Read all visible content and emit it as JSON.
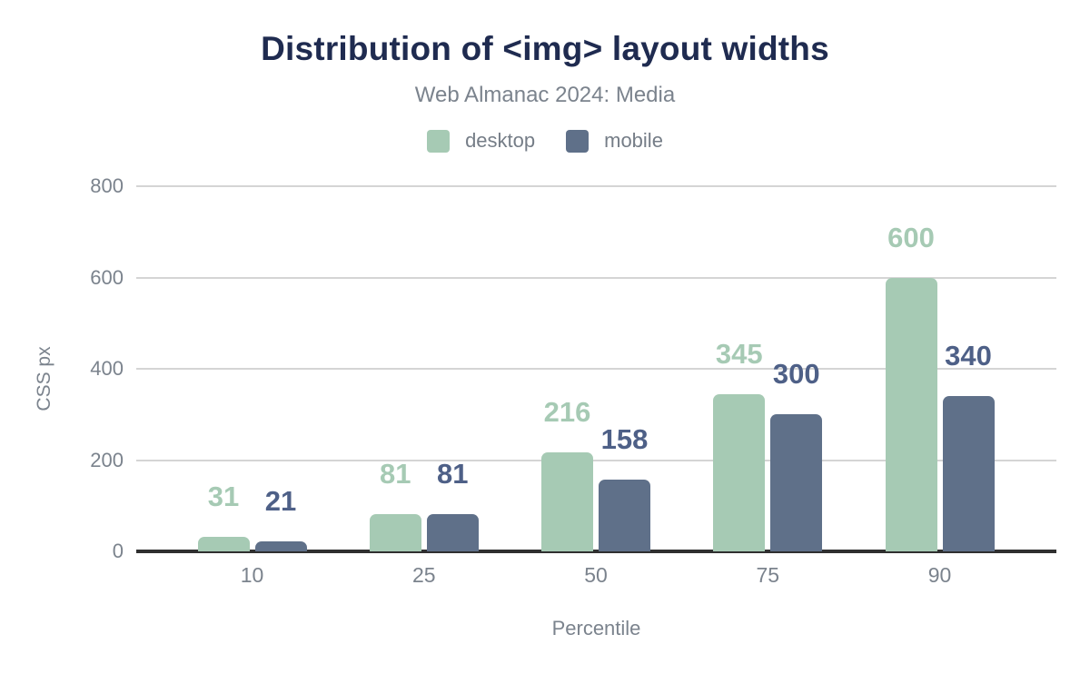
{
  "header": {
    "title": "Distribution of <img> layout widths",
    "subtitle": "Web Almanac 2024: Media"
  },
  "chart_data": {
    "type": "bar",
    "title": "Distribution of <img> layout widths",
    "subtitle": "Web Almanac 2024: Media",
    "categories": [
      "10",
      "25",
      "50",
      "75",
      "90"
    ],
    "series": [
      {
        "name": "desktop",
        "values": [
          31,
          81,
          216,
          345,
          600
        ],
        "color": "#a6cab4",
        "label_color": "#a6cab4"
      },
      {
        "name": "mobile",
        "values": [
          21,
          81,
          158,
          300,
          340
        ],
        "color": "#5f7089",
        "label_color": "#4e6087"
      }
    ],
    "xlabel": "Percentile",
    "ylabel": "CSS px",
    "ylim": [
      0,
      800
    ],
    "yticks": [
      0,
      200,
      400,
      600,
      800
    ],
    "grid": "horizontal-only",
    "legend_position": "top",
    "data_labels": "above-bars"
  },
  "colors": {
    "title": "#1f2b50",
    "muted_text": "#7b838d",
    "gridline": "#d5d5d5",
    "axis_line": "#303030",
    "background": "#ffffff"
  }
}
